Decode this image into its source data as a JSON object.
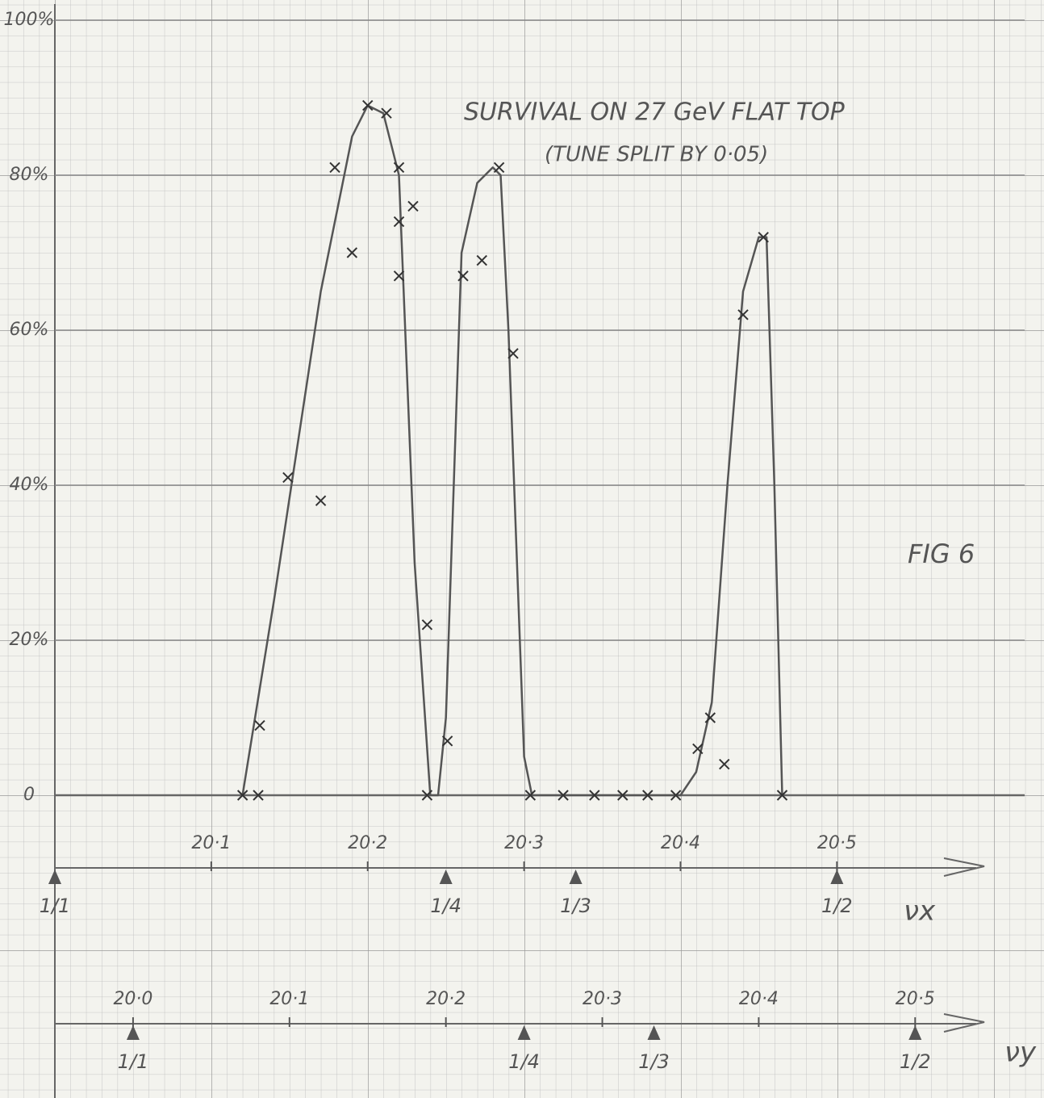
{
  "chart_data": {
    "type": "scatter",
    "title": "SURVIVAL ON 27 GeV FLAT TOP",
    "subtitle": "(TUNE SPLIT BY 0·05)",
    "annotation": "FIG 6",
    "color": "#555555",
    "ylim": [
      0,
      100
    ],
    "yticks": [
      0,
      {
        "value": 20,
        "label": "20%"
      },
      {
        "value": 40,
        "label": "40%"
      },
      {
        "value": 60,
        "label": "60%"
      },
      {
        "value": 80,
        "label": "80%"
      },
      {
        "value": 100,
        "label": "100%"
      }
    ],
    "xlim": [
      20.0,
      20.62
    ],
    "xlabel": "νx",
    "xticks": [
      {
        "value": 20.1,
        "label": "20·1"
      },
      {
        "value": 20.2,
        "label": "20·2"
      },
      {
        "value": 20.3,
        "label": "20·3"
      },
      {
        "value": 20.4,
        "label": "20·4"
      },
      {
        "value": 20.5,
        "label": "20·5"
      }
    ],
    "xmarkers": [
      {
        "value": 20.0,
        "label": "1/1"
      },
      {
        "value": 20.25,
        "label": "1/4"
      },
      {
        "value": 20.333,
        "label": "1/3"
      },
      {
        "value": 20.5,
        "label": "1/2"
      }
    ],
    "x2lim": [
      19.95,
      20.57
    ],
    "x2label": "νy",
    "x2ticks": [
      {
        "value": 20.0,
        "label": "20·0"
      },
      {
        "value": 20.1,
        "label": "20·1"
      },
      {
        "value": 20.2,
        "label": "20·2"
      },
      {
        "value": 20.3,
        "label": "20·3"
      },
      {
        "value": 20.4,
        "label": "20·4"
      },
      {
        "value": 20.5,
        "label": "20·5"
      }
    ],
    "x2markers": [
      {
        "value": 20.0,
        "label": "1/1"
      },
      {
        "value": 20.25,
        "label": "1/4"
      },
      {
        "value": 20.333,
        "label": "1/3"
      },
      {
        "value": 20.5,
        "label": "1/2"
      }
    ],
    "points": {
      "x": [
        20.12,
        20.13,
        20.131,
        20.149,
        20.17,
        20.179,
        20.19,
        20.2,
        20.212,
        20.22,
        20.229,
        20.22,
        20.22,
        20.238,
        20.238,
        20.251,
        20.261,
        20.273,
        20.284,
        20.293,
        20.304,
        20.325,
        20.345,
        20.363,
        20.379,
        20.397,
        20.411,
        20.419,
        20.428,
        20.44,
        20.453,
        20.465
      ],
      "y": [
        0,
        0,
        9,
        41,
        38,
        81,
        70,
        89,
        88,
        81,
        76,
        74,
        67,
        22,
        0,
        7,
        67,
        69,
        81,
        57,
        0,
        0,
        0,
        0,
        0,
        0,
        6,
        10,
        4,
        62,
        72,
        0
      ]
    },
    "curve": {
      "x": [
        20.12,
        20.14,
        20.17,
        20.19,
        20.2,
        20.21,
        20.22,
        20.23,
        20.24,
        20.245,
        20.25,
        20.26,
        20.27,
        20.28,
        20.285,
        20.29,
        20.3,
        20.305,
        20.4,
        20.41,
        20.42,
        20.43,
        20.44,
        20.45,
        20.455,
        20.46,
        20.465
      ],
      "y": [
        0,
        25,
        65,
        85,
        89,
        88,
        80,
        30,
        0,
        0,
        10,
        70,
        79,
        81,
        80,
        60,
        5,
        0,
        0,
        3,
        12,
        40,
        65,
        72,
        72,
        40,
        0
      ]
    }
  }
}
